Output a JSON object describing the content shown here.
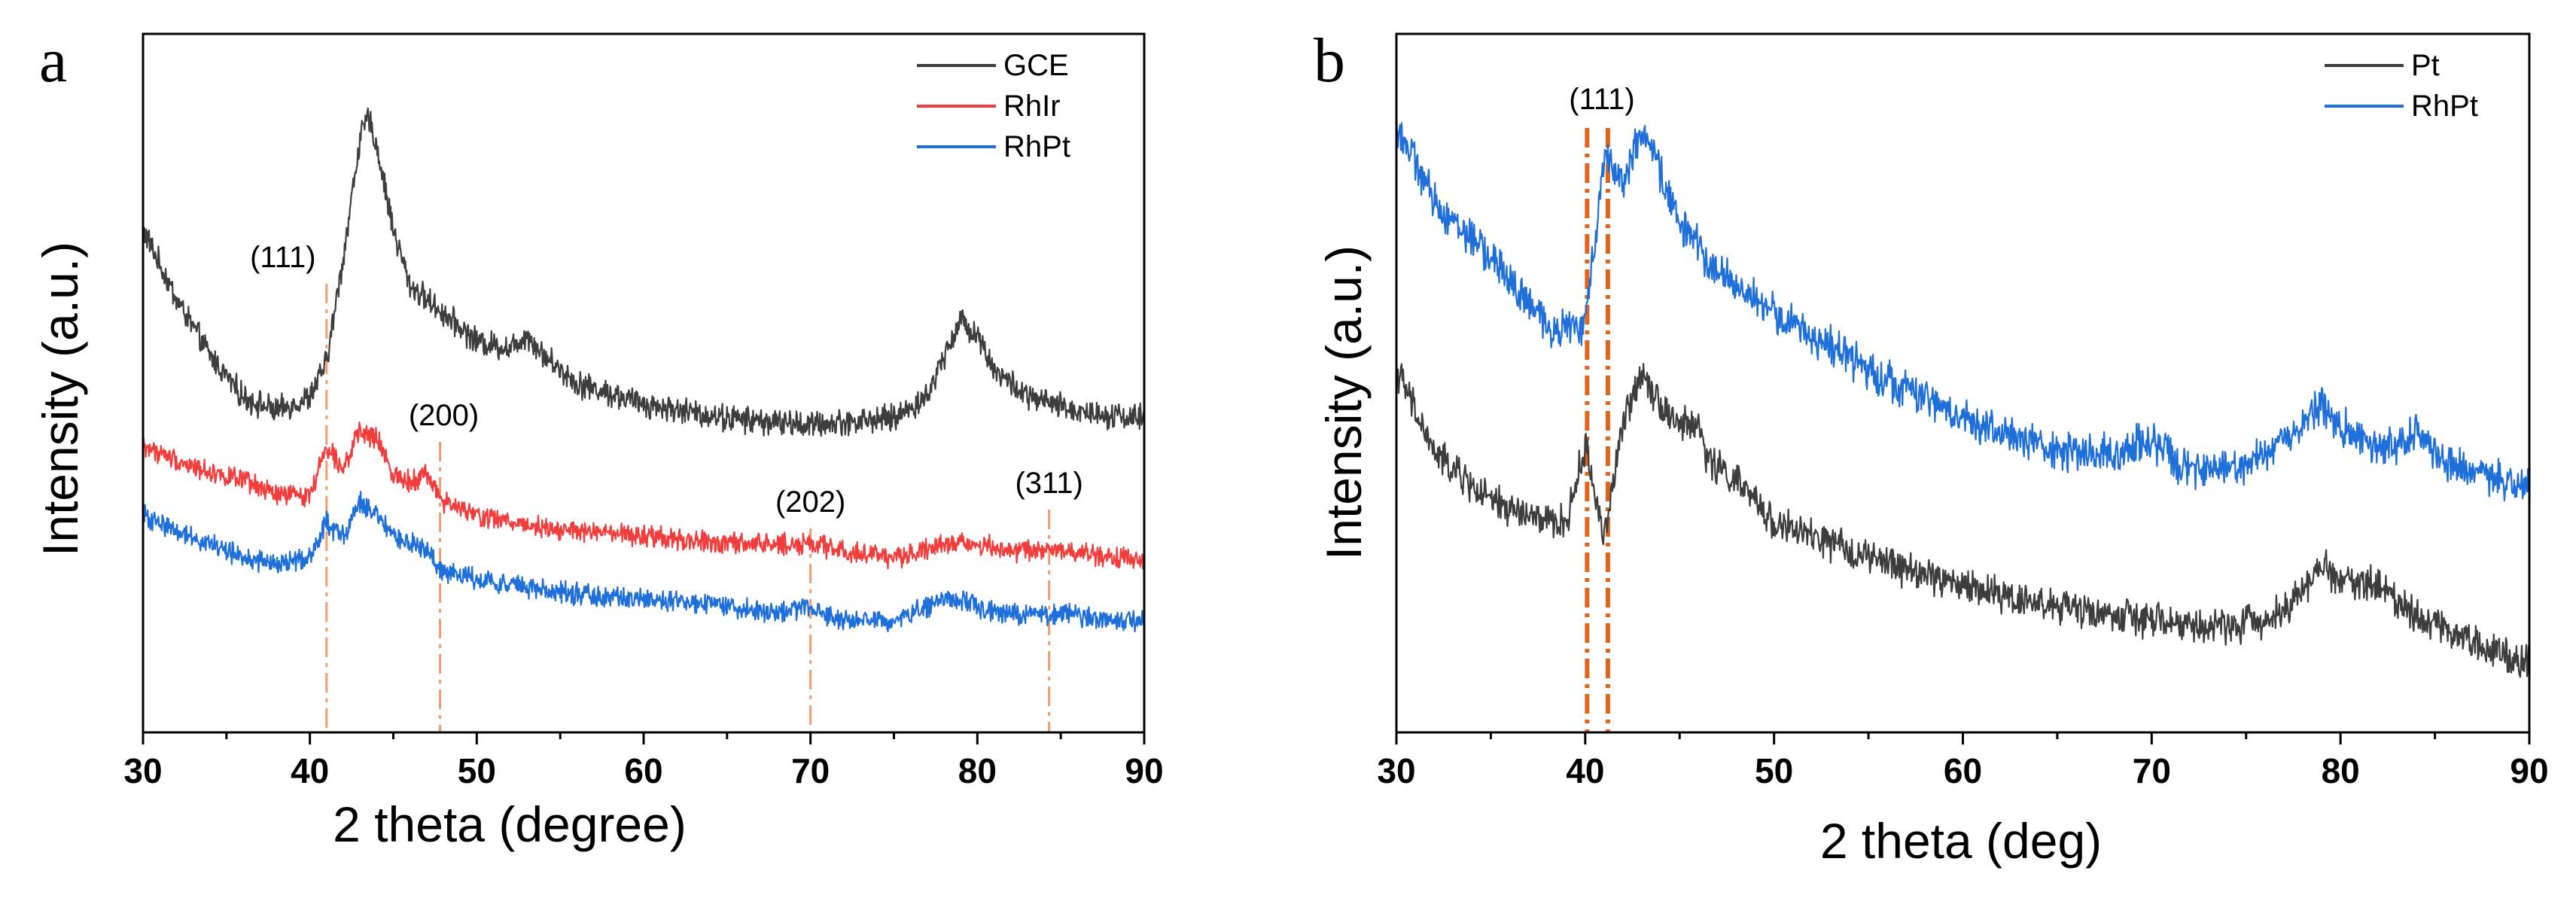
{
  "chart_data": [
    {
      "panel": "a",
      "type": "line",
      "xlabel": "2 theta (degree)",
      "ylabel": "Intensity (a.u.)",
      "xlim": [
        30,
        90
      ],
      "ylim": [
        0,
        100
      ],
      "xticks": [
        "30",
        "40",
        "50",
        "60",
        "70",
        "80",
        "90"
      ],
      "yticks_shown": false,
      "legend_position": "top-right",
      "series": [
        {
          "name": "GCE",
          "color": "#3d3d3d",
          "noise": 1.5,
          "points": [
            [
              30,
              72
            ],
            [
              32,
              62
            ],
            [
              34,
              54
            ],
            [
              36,
              48
            ],
            [
              38,
              46
            ],
            [
              40,
              48
            ],
            [
              41,
              53
            ],
            [
              42,
              68
            ],
            [
              43,
              85
            ],
            [
              43.5,
              88
            ],
            [
              44,
              84
            ],
            [
              45,
              72
            ],
            [
              46,
              64
            ],
            [
              48,
              60
            ],
            [
              50,
              56
            ],
            [
              52,
              55
            ],
            [
              53,
              57
            ],
            [
              54,
              54
            ],
            [
              56,
              50
            ],
            [
              60,
              47
            ],
            [
              65,
              45
            ],
            [
              70,
              44
            ],
            [
              75,
              45
            ],
            [
              77,
              48
            ],
            [
              78,
              54
            ],
            [
              79,
              59
            ],
            [
              80,
              57
            ],
            [
              81,
              52
            ],
            [
              83,
              48
            ],
            [
              86,
              46
            ],
            [
              90,
              45
            ]
          ]
        },
        {
          "name": "RhIr",
          "color": "#f23d3d",
          "noise": 1.2,
          "points": [
            [
              30,
              41
            ],
            [
              33,
              38
            ],
            [
              36,
              36
            ],
            [
              38,
              34
            ],
            [
              40,
              34
            ],
            [
              41,
              41
            ],
            [
              42,
              38
            ],
            [
              43,
              43
            ],
            [
              44,
              42
            ],
            [
              45,
              37
            ],
            [
              46,
              36
            ],
            [
              47,
              37
            ],
            [
              48,
              33
            ],
            [
              50,
              31
            ],
            [
              55,
              29
            ],
            [
              60,
              28
            ],
            [
              65,
              27
            ],
            [
              68,
              27
            ],
            [
              70,
              27
            ],
            [
              72,
              26
            ],
            [
              75,
              25
            ],
            [
              78,
              27
            ],
            [
              80,
              27
            ],
            [
              82,
              26
            ],
            [
              85,
              26
            ],
            [
              88,
              25
            ],
            [
              90,
              25
            ]
          ]
        },
        {
          "name": "RhPt",
          "color": "#1e6fd9",
          "noise": 1.2,
          "points": [
            [
              30,
              31
            ],
            [
              33,
              28
            ],
            [
              36,
              25
            ],
            [
              38,
              24
            ],
            [
              40,
              25
            ],
            [
              41,
              30
            ],
            [
              42,
              28
            ],
            [
              43,
              33
            ],
            [
              44,
              31
            ],
            [
              45,
              28
            ],
            [
              46,
              27
            ],
            [
              47,
              26
            ],
            [
              48,
              23
            ],
            [
              50,
              22
            ],
            [
              55,
              20
            ],
            [
              60,
              19
            ],
            [
              65,
              18
            ],
            [
              68,
              17
            ],
            [
              70,
              18
            ],
            [
              72,
              16
            ],
            [
              75,
              16
            ],
            [
              78,
              19
            ],
            [
              79,
              19
            ],
            [
              80,
              18
            ],
            [
              82,
              17
            ],
            [
              85,
              17
            ],
            [
              88,
              16
            ],
            [
              90,
              16
            ]
          ]
        }
      ],
      "reference_lines": [
        {
          "x": 41.0,
          "label": "(111)"
        },
        {
          "x": 47.8,
          "label": "(200)"
        },
        {
          "x": 70.0,
          "label": "(202)"
        },
        {
          "x": 84.3,
          "label": "(311)"
        }
      ],
      "reference_color": "#f59b6e"
    },
    {
      "panel": "b",
      "type": "line",
      "xlabel": "2 theta (deg)",
      "ylabel": "Intensity (a.u.)",
      "xlim": [
        30,
        90
      ],
      "ylim": [
        0,
        100
      ],
      "xticks": [
        "30",
        "40",
        "50",
        "60",
        "70",
        "80",
        "90"
      ],
      "yticks_shown": false,
      "legend_position": "top-right",
      "series": [
        {
          "name": "Pt",
          "color": "#3d3d3d",
          "noise": 2.0,
          "points": [
            [
              30,
              52
            ],
            [
              32,
              40
            ],
            [
              35,
              33
            ],
            [
              38,
              30
            ],
            [
              39,
              30
            ],
            [
              40,
              41
            ],
            [
              41,
              28
            ],
            [
              42,
              44
            ],
            [
              43,
              52
            ],
            [
              44,
              47
            ],
            [
              45,
              44
            ],
            [
              46,
              44
            ],
            [
              46.5,
              39
            ],
            [
              48,
              36
            ],
            [
              50,
              30
            ],
            [
              55,
              25
            ],
            [
              60,
              21
            ],
            [
              65,
              18
            ],
            [
              70,
              16
            ],
            [
              73,
              15
            ],
            [
              76,
              16
            ],
            [
              78,
              20
            ],
            [
              79,
              24
            ],
            [
              80,
              22
            ],
            [
              82,
              21
            ],
            [
              84,
              17
            ],
            [
              87,
              13
            ],
            [
              90,
              10
            ]
          ]
        },
        {
          "name": "RhPt",
          "color": "#1e6fd9",
          "noise": 2.2,
          "points": [
            [
              30,
              87
            ],
            [
              32,
              76
            ],
            [
              35,
              68
            ],
            [
              38,
              58
            ],
            [
              40,
              58
            ],
            [
              41,
              83
            ],
            [
              42,
              79
            ],
            [
              43,
              86
            ],
            [
              44,
              80
            ],
            [
              45,
              73
            ],
            [
              47,
              66
            ],
            [
              50,
              60
            ],
            [
              55,
              52
            ],
            [
              60,
              45
            ],
            [
              65,
              40
            ],
            [
              68,
              40
            ],
            [
              70,
              42
            ],
            [
              72,
              37
            ],
            [
              75,
              38
            ],
            [
              78,
              44
            ],
            [
              79,
              47
            ],
            [
              80,
              44
            ],
            [
              82,
              40
            ],
            [
              84,
              43
            ],
            [
              86,
              38
            ],
            [
              90,
              35
            ]
          ]
        }
      ],
      "reference_lines": [
        {
          "x": 40.1,
          "label": ""
        },
        {
          "x": 41.2,
          "label": ""
        }
      ],
      "reference_group_label": "(111)",
      "reference_color": "#e2641c"
    }
  ]
}
